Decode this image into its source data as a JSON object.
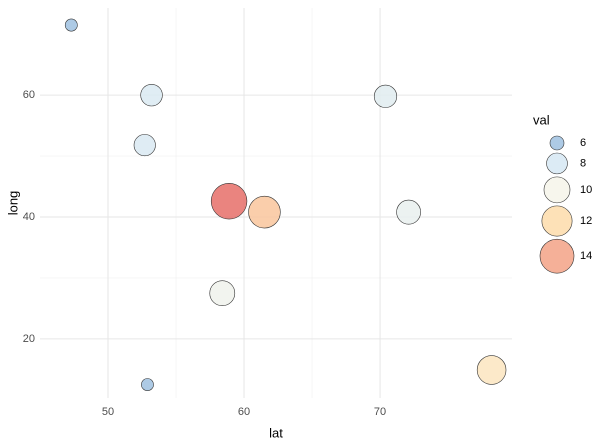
{
  "chart_data": {
    "type": "scatter",
    "x_label": "lat",
    "y_label": "long",
    "x": [
      47.3,
      53.2,
      52.7,
      70.4,
      58.9,
      61.5,
      72.1,
      58.4,
      52.9,
      78.2
    ],
    "y": [
      71.5,
      60.0,
      51.8,
      59.8,
      42.6,
      40.8,
      40.8,
      27.5,
      12.5,
      14.9
    ],
    "sizes": [
      5.6,
      8.3,
      8.2,
      8.6,
      15.0,
      12.8,
      9.2,
      9.6,
      5.6,
      11.3
    ],
    "xlim": [
      45.0,
      79.7
    ],
    "ylim": [
      10.3,
      74.3
    ],
    "xticks": [
      50,
      60,
      70
    ],
    "yticks": [
      20,
      40,
      60
    ],
    "grid": true,
    "legend": {
      "title": "val",
      "position": "right",
      "values": [
        6,
        8,
        10,
        12,
        14
      ],
      "colors": [
        "#9fc1e0",
        "#d6e8f3",
        "#f6f5ea",
        "#fddcaa",
        "#f3a286"
      ],
      "max_color": "#e66f68"
    }
  }
}
